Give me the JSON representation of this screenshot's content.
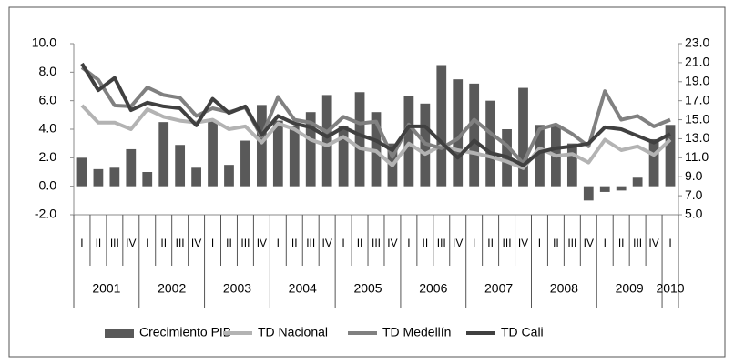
{
  "chart_data": {
    "type": "bar-line",
    "categories": [
      "I",
      "II",
      "III",
      "IV",
      "I",
      "II",
      "III",
      "IV",
      "I",
      "II",
      "III",
      "IV",
      "I",
      "II",
      "III",
      "IV",
      "I",
      "II",
      "III",
      "IV",
      "I",
      "II",
      "III",
      "IV",
      "I",
      "II",
      "III",
      "IV",
      "I",
      "II",
      "III",
      "IV",
      "I",
      "II",
      "III",
      "IV",
      "I"
    ],
    "year_groups": [
      "2001",
      "2002",
      "2003",
      "2004",
      "2005",
      "2006",
      "2007",
      "2008",
      "2009",
      "2010"
    ],
    "ylim": [
      -2,
      10
    ],
    "yticks": [
      {
        "value": -2,
        "label": "-2.0"
      },
      {
        "value": 0,
        "label": "0.0"
      },
      {
        "value": 2,
        "label": "2.0"
      },
      {
        "value": 4,
        "label": "4.0"
      },
      {
        "value": 6,
        "label": "6.0"
      },
      {
        "value": 8,
        "label": "8.0"
      },
      {
        "value": 10,
        "label": "10.0"
      }
    ],
    "y2lim": [
      5,
      23
    ],
    "y2ticks": [
      {
        "value": 5,
        "label": "5.0"
      },
      {
        "value": 7,
        "label": "7.0"
      },
      {
        "value": 9,
        "label": "9.0"
      },
      {
        "value": 11,
        "label": "11.0"
      },
      {
        "value": 13,
        "label": "13.0"
      },
      {
        "value": 15,
        "label": "15.0"
      },
      {
        "value": 17,
        "label": "17.0"
      },
      {
        "value": 19,
        "label": "19.0"
      },
      {
        "value": 21,
        "label": "21.0"
      },
      {
        "value": 23,
        "label": "23.0"
      }
    ],
    "series": [
      {
        "name": "Crecimiento PIB",
        "type": "bar",
        "color": "#595959",
        "values": [
          2.0,
          1.2,
          1.3,
          2.6,
          1.0,
          4.5,
          2.9,
          1.3,
          4.6,
          1.5,
          3.2,
          5.7,
          4.6,
          4.2,
          5.2,
          6.4,
          4.2,
          6.6,
          5.2,
          3.0,
          6.3,
          5.8,
          8.5,
          7.5,
          7.2,
          6.0,
          4.0,
          6.9,
          4.3,
          4.3,
          3.0,
          -1.0,
          -0.4,
          -0.3,
          0.6,
          3.3,
          4.3
        ]
      },
      {
        "name": "TD Nacional",
        "type": "line",
        "axis": "y2",
        "color": "#b3b3b3",
        "values": [
          16.5,
          14.7,
          14.7,
          14.0,
          16.1,
          15.3,
          14.9,
          14.7,
          15.0,
          14.0,
          14.3,
          12.6,
          14.6,
          14.0,
          12.9,
          12.3,
          13.2,
          12.0,
          11.7,
          10.2,
          12.5,
          11.4,
          12.3,
          11.8,
          11.5,
          11.1,
          10.6,
          9.9,
          12.0,
          11.2,
          11.4,
          10.5,
          12.9,
          11.8,
          12.2,
          11.3,
          12.9
        ]
      },
      {
        "name": "TD Medellín",
        "type": "line",
        "axis": "y2",
        "color": "#808080",
        "values": [
          20.5,
          19.2,
          16.5,
          16.4,
          18.4,
          17.6,
          17.3,
          15.4,
          16.2,
          15.8,
          16.3,
          13.2,
          17.4,
          15.0,
          14.7,
          13.7,
          15.3,
          14.6,
          14.8,
          11.1,
          14.5,
          12.5,
          12.0,
          13.0,
          15.0,
          13.6,
          12.3,
          10.4,
          14.0,
          14.5,
          13.5,
          12.2,
          18.0,
          15.0,
          15.4,
          14.3,
          15.0
        ]
      },
      {
        "name": "TD Cali",
        "type": "line",
        "axis": "y2",
        "color": "#404040",
        "values": [
          20.9,
          18.1,
          19.4,
          16.0,
          16.8,
          16.4,
          16.2,
          14.4,
          17.2,
          15.7,
          16.4,
          13.4,
          15.4,
          14.6,
          14.2,
          13.2,
          14.2,
          13.4,
          12.8,
          11.8,
          14.3,
          14.3,
          12.6,
          11.0,
          12.8,
          11.5,
          11.1,
          10.2,
          11.6,
          12.0,
          12.2,
          12.5,
          14.2,
          14.0,
          13.3,
          12.6,
          13.5
        ]
      }
    ]
  }
}
